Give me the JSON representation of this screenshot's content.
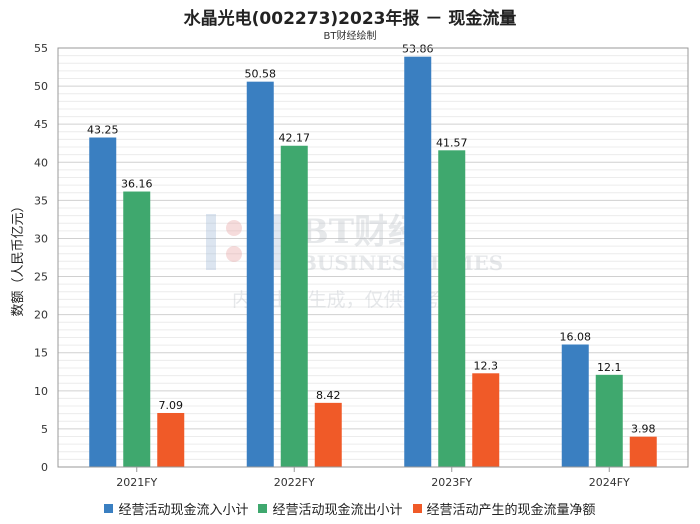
{
  "chart_data": {
    "type": "bar",
    "title": "水晶光电(002273)2023年报 － 现金流量",
    "subtitle": "BT财经绘制",
    "ylabel": "数额（人民币亿元）",
    "xlabel": "",
    "ylim": [
      0,
      55
    ],
    "yticks": [
      0,
      5,
      10,
      15,
      20,
      25,
      30,
      35,
      40,
      45,
      50,
      55
    ],
    "grid": true,
    "legend_position": "bottom",
    "categories": [
      "2021FY",
      "2022FY",
      "2023FY",
      "2024FY"
    ],
    "series": [
      {
        "name": "经营活动现金流入小计",
        "color": "#3a7fc1",
        "values": [
          43.25,
          50.58,
          53.86,
          16.08
        ],
        "labels": [
          "43.25",
          "50.58",
          "53.86",
          "16.08"
        ]
      },
      {
        "name": "经营活动现金流出小计",
        "color": "#3fa86e",
        "values": [
          36.16,
          42.17,
          41.57,
          12.1
        ],
        "labels": [
          "36.16",
          "42.17",
          "41.57",
          "12.1"
        ]
      },
      {
        "name": "经营活动产生的现金流量净额",
        "color": "#f05a28",
        "values": [
          7.09,
          8.42,
          12.3,
          3.98
        ],
        "labels": [
          "7.09",
          "8.42",
          "12.3",
          "3.98"
        ]
      }
    ]
  },
  "watermark": {
    "brand_cn": "BT财经",
    "brand_en": "BUSINESS TIMES",
    "notice": "内容由AI生成，仅供参考"
  }
}
